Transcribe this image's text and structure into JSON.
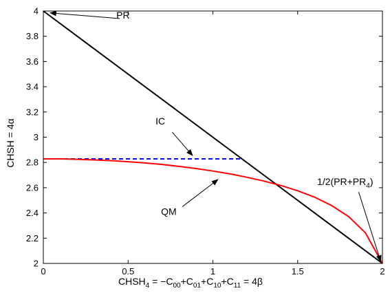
{
  "chart_data": {
    "type": "line",
    "xlabel_parts": {
      "base": "CHSH",
      "base_sub": "4",
      "t1": " = −C",
      "s1": "00",
      "t2": "+C",
      "s2": "01",
      "t3": "+C",
      "s3": "10",
      "t4": "+C",
      "s4": "11",
      "t5": " = 4β"
    },
    "ylabel": "CHSH = 4α",
    "xlim": [
      0,
      2
    ],
    "ylim": [
      2,
      4
    ],
    "xticks": [
      0,
      0.5,
      1,
      1.5,
      2
    ],
    "xtick_labels": [
      "0",
      "0.5",
      "1",
      "1.5",
      "2"
    ],
    "yticks": [
      2,
      2.2,
      2.4,
      2.6,
      2.8,
      3,
      3.2,
      3.4,
      3.6,
      3.8,
      4
    ],
    "ytick_labels": [
      "2",
      "2.2",
      "2.4",
      "2.6",
      "2.8",
      "3",
      "3.2",
      "3.4",
      "3.6",
      "3.8",
      "4"
    ],
    "grid": false,
    "series": [
      {
        "style": "solid",
        "color": "#000000",
        "x": [
          0,
          2
        ],
        "y": [
          4,
          2
        ]
      },
      {
        "style": "dashed",
        "color": "#0000ff",
        "x": [
          0,
          1.172
        ],
        "y": [
          2.828,
          2.828
        ]
      },
      {
        "style": "solid",
        "color": "#ff0000",
        "x": [
          0,
          0.1,
          0.2,
          0.3,
          0.4,
          0.5,
          0.6,
          0.7,
          0.8,
          0.9,
          1.0,
          1.1,
          1.2,
          1.3,
          1.4,
          1.5,
          1.6,
          1.7,
          1.8,
          1.9,
          2.0
        ],
        "y": [
          2.828,
          2.828,
          2.825,
          2.82,
          2.814,
          2.806,
          2.796,
          2.784,
          2.769,
          2.752,
          2.732,
          2.71,
          2.683,
          2.653,
          2.618,
          2.576,
          2.525,
          2.459,
          2.372,
          2.242,
          2.0
        ]
      }
    ],
    "annotations": [
      {
        "label": "PR",
        "text_at": [
          0.47,
          3.94
        ],
        "arrow_from": [
          0.45,
          3.94
        ],
        "arrow_to": [
          0.04,
          3.985
        ]
      },
      {
        "label": "IC",
        "text_at": [
          0.69,
          3.1
        ],
        "arrow_from": [
          0.76,
          3.04
        ],
        "arrow_to": [
          0.88,
          2.855
        ]
      },
      {
        "label": "QM",
        "text_at": [
          0.74,
          2.385
        ],
        "arrow_from": [
          0.82,
          2.45
        ],
        "arrow_to": [
          1.03,
          2.665
        ]
      },
      {
        "label_parts": {
          "t1": "1/2(PR+PR",
          "s1": "4",
          "t2": ")"
        },
        "text_at": [
          1.78,
          2.62
        ],
        "arrow_from": [
          1.86,
          2.565
        ],
        "arrow_to": [
          1.99,
          2.015
        ]
      }
    ]
  }
}
